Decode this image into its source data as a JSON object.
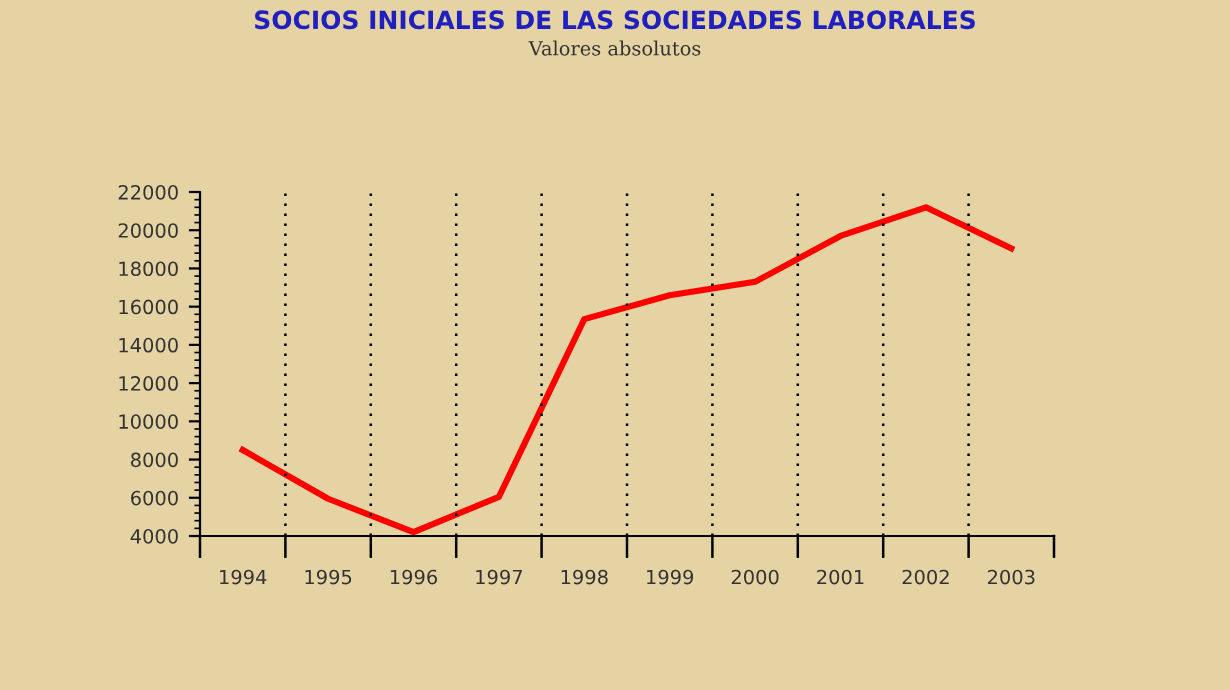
{
  "chart_data": {
    "type": "line",
    "title": "SOCIOS INICIALES DE LAS SOCIEDADES LABORALES",
    "subtitle": "Valores absolutos",
    "categories": [
      "1994",
      "1995",
      "1996",
      "1997",
      "1998",
      "1999",
      "2000",
      "2001",
      "2002",
      "2003"
    ],
    "series": [
      {
        "color": "#ff0000",
        "values": [
          8500,
          5950,
          4200,
          6050,
          15350,
          16600,
          17300,
          19700,
          21200,
          19050
        ]
      }
    ],
    "ylim": [
      4000,
      22000
    ],
    "yticks": [
      4000,
      6000,
      8000,
      10000,
      12000,
      14000,
      16000,
      18000,
      20000,
      22000
    ],
    "grid": "x",
    "marker": "none",
    "line_style": "solid",
    "legend": false
  }
}
